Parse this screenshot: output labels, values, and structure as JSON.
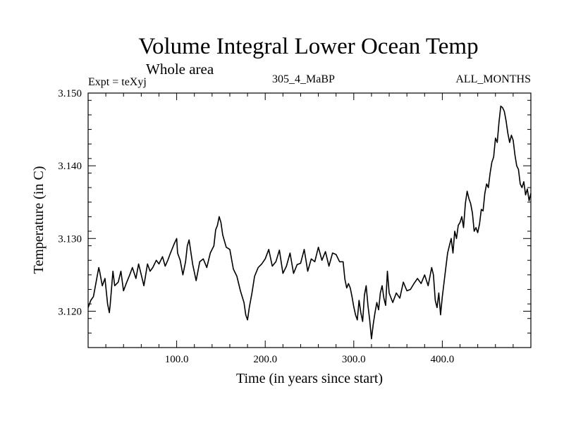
{
  "header": {
    "title": "Volume Integral Lower Ocean Temp",
    "subtitle": "Whole area",
    "expt_label": "Expt = teXyj",
    "run_label": "305_4_MaBP",
    "months_label": "ALL_MONTHS"
  },
  "chart_data": {
    "type": "line",
    "title": "Volume Integral Lower Ocean Temp",
    "subtitle": "Whole area",
    "xlabel": "Time (in years since start)",
    "ylabel": "Temperature (in C)",
    "xlim": [
      0,
      500
    ],
    "ylim": [
      3.115,
      3.15
    ],
    "x_ticks": [
      100,
      200,
      300,
      400
    ],
    "x_tick_labels": [
      "100.0",
      "200.0",
      "300.0",
      "400.0"
    ],
    "y_ticks": [
      3.12,
      3.13,
      3.14,
      3.15
    ],
    "y_tick_labels": [
      "3.120",
      "3.130",
      "3.140",
      "3.150"
    ],
    "grid": false,
    "line_color": "#000000",
    "series": [
      {
        "x": [
          0,
          3,
          6,
          9,
          12,
          13,
          16,
          19,
          22,
          24,
          25,
          28,
          30,
          34,
          37,
          40,
          43,
          47,
          50,
          54,
          57,
          60,
          63,
          67,
          70,
          73,
          77,
          80,
          84,
          87,
          90,
          93,
          97,
          100,
          101,
          104,
          107,
          110,
          112,
          114,
          118,
          122,
          126,
          130,
          134,
          138,
          142,
          144,
          146,
          148,
          150,
          152,
          156,
          160,
          164,
          168,
          172,
          176,
          178,
          180,
          182,
          185,
          188,
          192,
          196,
          200,
          204,
          208,
          212,
          216,
          220,
          224,
          228,
          232,
          236,
          240,
          244,
          248,
          252,
          256,
          260,
          264,
          268,
          272,
          276,
          280,
          284,
          288,
          290,
          292,
          294,
          296,
          298,
          300,
          302,
          304,
          306,
          308,
          310,
          312,
          314,
          316,
          318,
          320,
          322,
          324,
          326,
          328,
          330,
          332,
          334,
          336,
          338,
          340,
          344,
          348,
          352,
          356,
          360,
          364,
          368,
          372,
          376,
          380,
          384,
          388,
          390,
          392,
          394,
          396,
          398,
          400,
          402,
          404,
          406,
          408,
          410,
          412,
          414,
          416,
          418,
          420,
          422,
          424,
          426,
          428,
          430,
          432,
          434,
          436,
          438,
          440,
          442,
          444,
          446,
          448,
          450,
          452,
          454,
          456,
          458,
          460,
          462,
          464,
          466,
          468,
          470,
          472,
          474,
          476,
          478,
          480,
          482,
          484,
          486,
          488,
          490,
          492,
          494,
          496,
          498,
          500
        ],
        "y": [
          3.1205,
          3.1215,
          3.122,
          3.124,
          3.126,
          3.1255,
          3.1235,
          3.1245,
          3.121,
          3.1198,
          3.121,
          3.1255,
          3.1235,
          3.124,
          3.1255,
          3.1228,
          3.1238,
          3.125,
          3.126,
          3.1245,
          3.1265,
          3.125,
          3.1235,
          3.1265,
          3.1255,
          3.126,
          3.127,
          3.1265,
          3.1275,
          3.1262,
          3.127,
          3.128,
          3.1292,
          3.13,
          3.128,
          3.127,
          3.125,
          3.1268,
          3.129,
          3.1298,
          3.1265,
          3.1242,
          3.1268,
          3.1272,
          3.126,
          3.128,
          3.129,
          3.1312,
          3.1318,
          3.133,
          3.1322,
          3.1305,
          3.1288,
          3.1285,
          3.1258,
          3.1248,
          3.1228,
          3.1212,
          3.1195,
          3.1188,
          3.1205,
          3.1225,
          3.1248,
          3.126,
          3.1265,
          3.1272,
          3.1285,
          3.1262,
          3.1268,
          3.1284,
          3.1252,
          3.1262,
          3.128,
          3.1252,
          3.1264,
          3.1266,
          3.1285,
          3.1255,
          3.1272,
          3.1268,
          3.1288,
          3.127,
          3.1282,
          3.1262,
          3.128,
          3.1278,
          3.1268,
          3.1268,
          3.1244,
          3.1232,
          3.1238,
          3.1232,
          3.122,
          3.1206,
          3.1195,
          3.1188,
          3.1215,
          3.1198,
          3.1186,
          3.1222,
          3.1235,
          3.1208,
          3.1188,
          3.1162,
          3.1182,
          3.1198,
          3.1212,
          3.1202,
          3.1225,
          3.1235,
          3.1218,
          3.1208,
          3.1255,
          3.1225,
          3.1212,
          3.1225,
          3.1218,
          3.124,
          3.1228,
          3.123,
          3.1238,
          3.1245,
          3.1238,
          3.125,
          3.1235,
          3.126,
          3.125,
          3.1215,
          3.1205,
          3.1225,
          3.1195,
          3.122,
          3.124,
          3.126,
          3.128,
          3.129,
          3.13,
          3.128,
          3.131,
          3.13,
          3.1318,
          3.1322,
          3.133,
          3.1315,
          3.1348,
          3.1365,
          3.1355,
          3.1348,
          3.1335,
          3.131,
          3.1315,
          3.1308,
          3.132,
          3.134,
          3.1338,
          3.1362,
          3.1375,
          3.137,
          3.139,
          3.1405,
          3.1412,
          3.1438,
          3.1432,
          3.146,
          3.1482,
          3.148,
          3.1475,
          3.1462,
          3.1445,
          3.1432,
          3.1442,
          3.1435,
          3.1415,
          3.14,
          3.1395,
          3.1375,
          3.137,
          3.1378,
          3.136,
          3.1368,
          3.1352,
          3.1362
        ]
      }
    ]
  }
}
